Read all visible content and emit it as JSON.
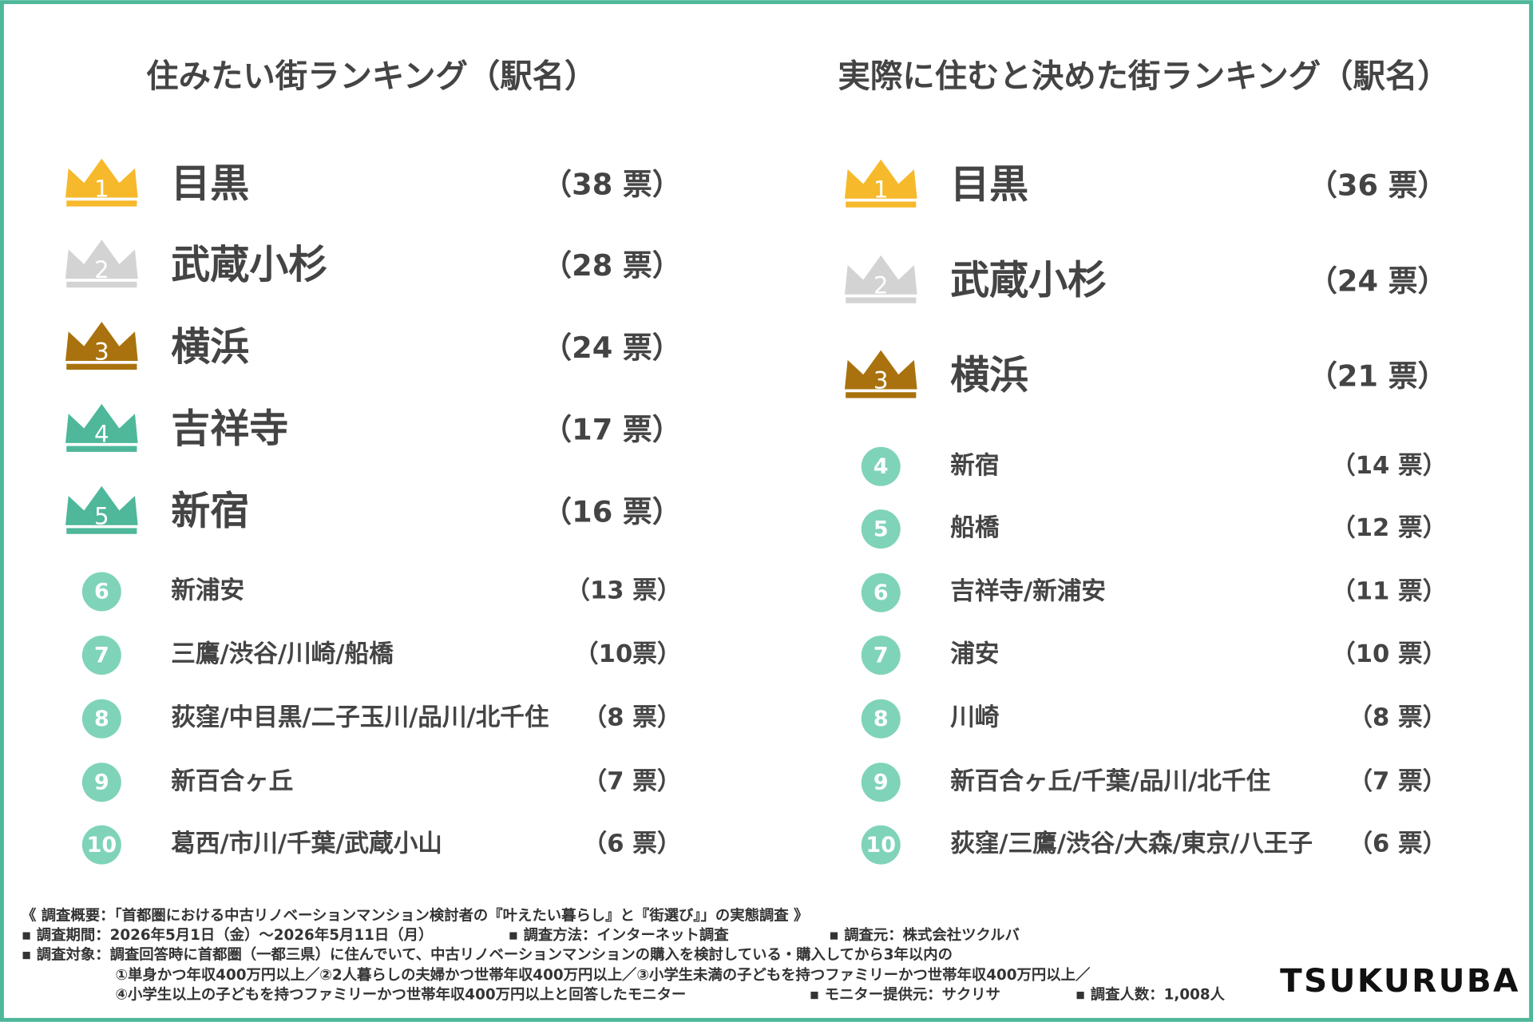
{
  "left": {
    "title": "住みたい街ランキング（駅名）",
    "rows": [
      {
        "rank": 1,
        "name": "目黒",
        "votes": "（38 票）"
      },
      {
        "rank": 2,
        "name": "武蔵小杉",
        "votes": "（28 票）"
      },
      {
        "rank": 3,
        "name": "横浜",
        "votes": "（24 票）"
      },
      {
        "rank": 4,
        "name": "吉祥寺",
        "votes": "（17 票）"
      },
      {
        "rank": 5,
        "name": "新宿",
        "votes": "（16 票）"
      },
      {
        "rank": 6,
        "name": "新浦安",
        "votes": "（13 票）"
      },
      {
        "rank": 7,
        "name": "三鷹/渋谷/川崎/船橋",
        "votes": "（10票）"
      },
      {
        "rank": 8,
        "name": "荻窪/中目黒/二子玉川/品川/北千住",
        "votes": "（8 票）"
      },
      {
        "rank": 9,
        "name": "新百合ヶ丘",
        "votes": "（7 票）"
      },
      {
        "rank": 10,
        "name": "葛西/市川/千葉/武蔵小山",
        "votes": "（6 票）"
      }
    ]
  },
  "right": {
    "title": "実際に住むと決めた街ランキング（駅名）",
    "rows": [
      {
        "rank": 1,
        "name": "目黒",
        "votes": "（36 票）"
      },
      {
        "rank": 2,
        "name": "武蔵小杉",
        "votes": "（24 票）"
      },
      {
        "rank": 3,
        "name": "横浜",
        "votes": "（21 票）"
      },
      {
        "rank": 4,
        "name": "新宿",
        "votes": "（14 票）"
      },
      {
        "rank": 5,
        "name": "船橋",
        "votes": "（12 票）"
      },
      {
        "rank": 6,
        "name": "吉祥寺/新浦安",
        "votes": "（11 票）"
      },
      {
        "rank": 7,
        "name": "浦安",
        "votes": "（10 票）"
      },
      {
        "rank": 8,
        "name": "川崎",
        "votes": "（8 票）"
      },
      {
        "rank": 9,
        "name": "新百合ヶ丘/千葉/品川/北千住",
        "votes": "（7 票）"
      },
      {
        "rank": 10,
        "name": "荻窪/三鷹/渋谷/大森/東京/八王子",
        "votes": "（6 票）"
      }
    ]
  },
  "footer": {
    "lines": [
      [
        "《 調査概要：「首都圏における中古リノベーションマンション検討者の『叶えたい暮らし』と『街選び』」の実態調査 》"
      ],
      [
        "▪ 調査期間：2026年5月1日（金）～2026年5月11日（月）",
        "▪ 調査方法：インターネット調査",
        "▪ 調査元：株式会社ツクルバ"
      ],
      [
        "▪ 調査対象：調査回答時に首都圏（一都三県）に住んでいて、中古リノベーションマンションの購入を検討している・購入してから3年以内の"
      ],
      [
        "①単身かつ年収400万円以上／②2人暮らしの夫婦かつ世帯年収400万円以上／③小学生未満の子どもを持つファミリーかつ世帯年収400万円以上／"
      ],
      [
        "④小学生以上の子どもを持つファミリーかつ世帯年収400万円以上と回答したモニター",
        "▪ モニター提供元：サクリサ",
        "▪ 調査人数：1,008人"
      ]
    ]
  },
  "logo": "TSUKURUBA"
}
